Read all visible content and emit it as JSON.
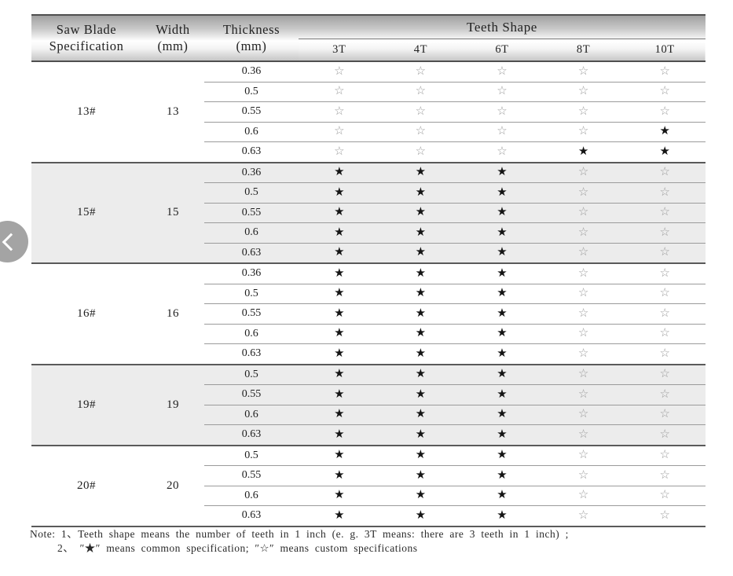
{
  "nav": {
    "prev_icon": "chevron-left"
  },
  "colors": {
    "shaded_row": "#ececec",
    "star_common": "#141414",
    "star_custom": "#9a9a9a",
    "header_gradient_top": "#9f9f9f",
    "header_gradient_bottom": "#c3c3c3"
  },
  "table": {
    "columns": {
      "spec": [
        "Saw Blade",
        "Specification"
      ],
      "width": [
        "Width",
        "(mm)"
      ],
      "thickness": [
        "Thickness",
        "(mm)"
      ],
      "teeth_group": "Teeth Shape",
      "teeth": [
        "3T",
        "4T",
        "6T",
        "8T",
        "10T"
      ]
    },
    "legend": {
      "common": "★",
      "custom": "☆"
    },
    "groups": [
      {
        "spec": "13#",
        "width": "13",
        "shaded": false,
        "rows": [
          {
            "thickness": "0.36",
            "marks": [
              "☆",
              "☆",
              "☆",
              "☆",
              "☆"
            ]
          },
          {
            "thickness": "0.5",
            "marks": [
              "☆",
              "☆",
              "☆",
              "☆",
              "☆"
            ]
          },
          {
            "thickness": "0.55",
            "marks": [
              "☆",
              "☆",
              "☆",
              "☆",
              "☆"
            ]
          },
          {
            "thickness": "0.6",
            "marks": [
              "☆",
              "☆",
              "☆",
              "☆",
              "★"
            ]
          },
          {
            "thickness": "0.63",
            "marks": [
              "☆",
              "☆",
              "☆",
              "★",
              "★"
            ]
          }
        ]
      },
      {
        "spec": "15#",
        "width": "15",
        "shaded": true,
        "rows": [
          {
            "thickness": "0.36",
            "marks": [
              "★",
              "★",
              "★",
              "☆",
              "☆"
            ]
          },
          {
            "thickness": "0.5",
            "marks": [
              "★",
              "★",
              "★",
              "☆",
              "☆"
            ]
          },
          {
            "thickness": "0.55",
            "marks": [
              "★",
              "★",
              "★",
              "☆",
              "☆"
            ]
          },
          {
            "thickness": "0.6",
            "marks": [
              "★",
              "★",
              "★",
              "☆",
              "☆"
            ]
          },
          {
            "thickness": "0.63",
            "marks": [
              "★",
              "★",
              "★",
              "☆",
              "☆"
            ]
          }
        ]
      },
      {
        "spec": "16#",
        "width": "16",
        "shaded": false,
        "rows": [
          {
            "thickness": "0.36",
            "marks": [
              "★",
              "★",
              "★",
              "☆",
              "☆"
            ]
          },
          {
            "thickness": "0.5",
            "marks": [
              "★",
              "★",
              "★",
              "☆",
              "☆"
            ]
          },
          {
            "thickness": "0.55",
            "marks": [
              "★",
              "★",
              "★",
              "☆",
              "☆"
            ]
          },
          {
            "thickness": "0.6",
            "marks": [
              "★",
              "★",
              "★",
              "☆",
              "☆"
            ]
          },
          {
            "thickness": "0.63",
            "marks": [
              "★",
              "★",
              "★",
              "☆",
              "☆"
            ]
          }
        ]
      },
      {
        "spec": "19#",
        "width": "19",
        "shaded": true,
        "rows": [
          {
            "thickness": "0.5",
            "marks": [
              "★",
              "★",
              "★",
              "☆",
              "☆"
            ]
          },
          {
            "thickness": "0.55",
            "marks": [
              "★",
              "★",
              "★",
              "☆",
              "☆"
            ]
          },
          {
            "thickness": "0.6",
            "marks": [
              "★",
              "★",
              "★",
              "☆",
              "☆"
            ]
          },
          {
            "thickness": "0.63",
            "marks": [
              "★",
              "★",
              "★",
              "☆",
              "☆"
            ]
          }
        ]
      },
      {
        "spec": "20#",
        "width": "20",
        "shaded": false,
        "rows": [
          {
            "thickness": "0.5",
            "marks": [
              "★",
              "★",
              "★",
              "☆",
              "☆"
            ]
          },
          {
            "thickness": "0.55",
            "marks": [
              "★",
              "★",
              "★",
              "☆",
              "☆"
            ]
          },
          {
            "thickness": "0.6",
            "marks": [
              "★",
              "★",
              "★",
              "☆",
              "☆"
            ]
          },
          {
            "thickness": "0.63",
            "marks": [
              "★",
              "★",
              "★",
              "☆",
              "☆"
            ]
          }
        ]
      }
    ]
  },
  "note": {
    "line1": "Note: 1、Teeth shape means the number of teeth in 1 inch (e. g.  3T  means: there are 3 teeth in 1 inch) ;",
    "line2": "2、 ″★″ means common specification;  ″☆″ means custom specifications"
  }
}
